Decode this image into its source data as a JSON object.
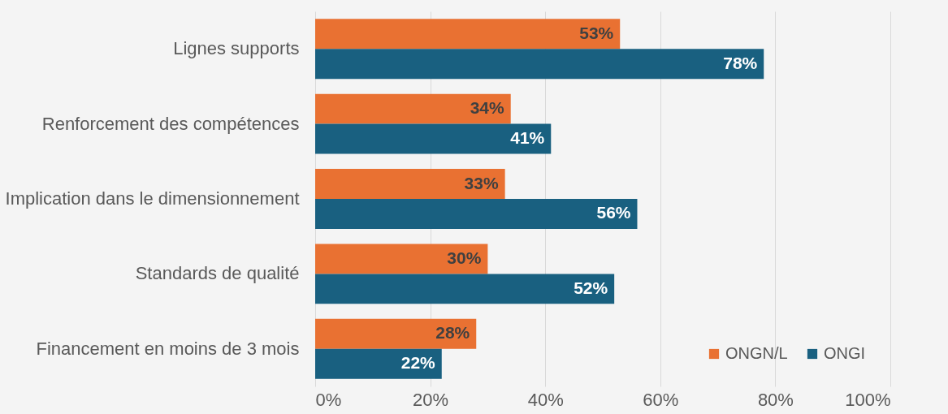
{
  "chart_data": {
    "type": "bar",
    "orientation": "horizontal",
    "categories": [
      "Lignes supports",
      "Renforcement des compétences",
      "Implication dans le dimensionnement",
      "Standards de qualité",
      "Financement en moins de 3 mois"
    ],
    "series": [
      {
        "name": "ONGN/L",
        "color": "#e97132",
        "values": [
          53,
          34,
          33,
          30,
          28
        ],
        "value_labels": [
          "53%",
          "34%",
          "33%",
          "30%",
          "28%"
        ]
      },
      {
        "name": "ONGI",
        "color": "#196080",
        "values": [
          78,
          41,
          56,
          52,
          22
        ],
        "value_labels": [
          "78%",
          "41%",
          "56%",
          "52%",
          "22%"
        ]
      }
    ],
    "xlim": [
      0,
      100
    ],
    "xticks": [
      {
        "value": 0,
        "label": "0%"
      },
      {
        "value": 20,
        "label": "20%"
      },
      {
        "value": 40,
        "label": "40%"
      },
      {
        "value": 60,
        "label": "60%"
      },
      {
        "value": 80,
        "label": "80%"
      },
      {
        "value": 100,
        "label": "100%"
      }
    ],
    "grid": "x",
    "legend": "bottom right"
  }
}
